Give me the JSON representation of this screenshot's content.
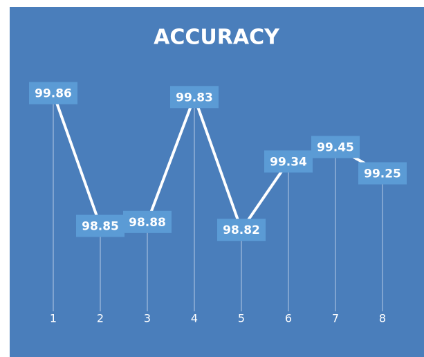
{
  "chart_data": {
    "type": "line",
    "title": "ACCURACY",
    "categories": [
      "1",
      "2",
      "3",
      "4",
      "5",
      "6",
      "7",
      "8"
    ],
    "values": [
      99.86,
      98.85,
      98.88,
      99.83,
      98.82,
      99.34,
      99.45,
      99.25
    ],
    "color": "#ffffff",
    "ylim": [
      98.2,
      100.1
    ],
    "drop_lines": true,
    "data_labels": true
  }
}
